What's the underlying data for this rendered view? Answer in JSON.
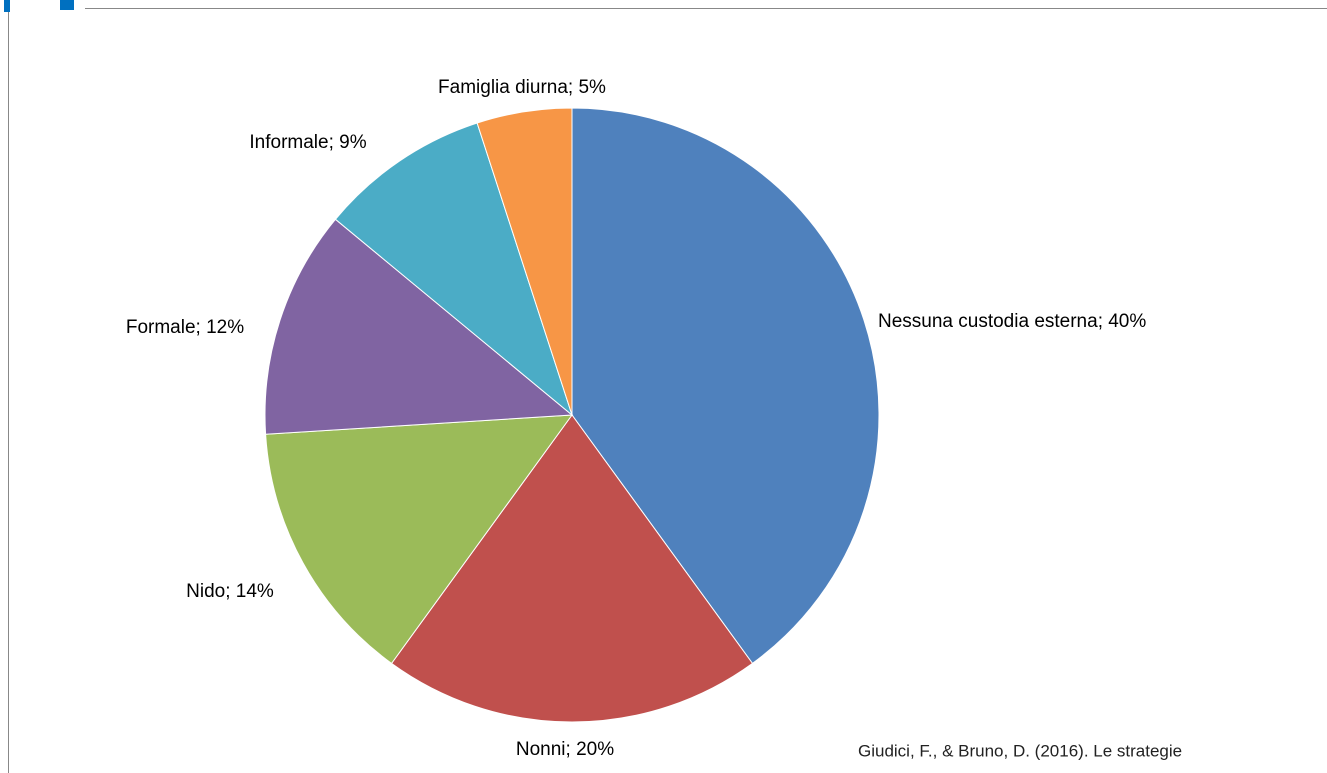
{
  "chart_data": {
    "type": "pie",
    "labels": [
      "Nessuna custodia esterna; 40%",
      "Nonni; 20%",
      "Nido; 14%",
      "Formale; 12%",
      "Informale; 9%",
      "Famiglia diurna; 5%"
    ],
    "values": [
      40,
      20,
      14,
      12,
      9,
      5
    ],
    "colors": [
      "#4f81bd",
      "#c0504d",
      "#9bbb59",
      "#8064a2",
      "#4bacc6",
      "#f79646"
    ],
    "source": "Giudici, F., & Bruno, D. (2016). Le strategie"
  }
}
